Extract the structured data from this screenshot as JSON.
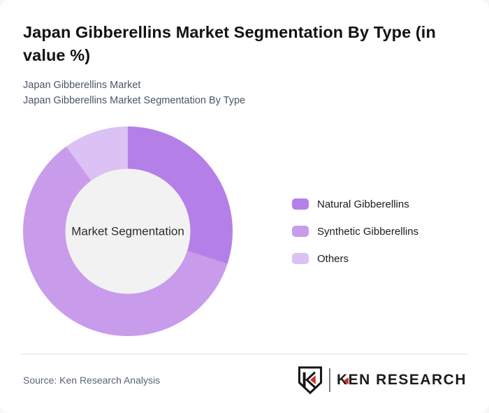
{
  "header": {
    "title": "Japan Gibberellins Market Segmentation By Type (in value %)",
    "subtitle_line1": "Japan Gibberellins Market",
    "subtitle_line2": "Japan Gibberellins Market Segmentation By Type"
  },
  "chart_data": {
    "type": "pie",
    "variant": "donut",
    "title": "Japan Gibberellins Market Segmentation By Type (in value %)",
    "center_label": "Market Segmentation",
    "categories": [
      "Natural Gibberellins",
      "Synthetic Gibberellins",
      "Others"
    ],
    "values": [
      30,
      60,
      10
    ],
    "unit": "value %",
    "colors": [
      "#b480e8",
      "#c89ceb",
      "#dcc1f4"
    ],
    "start_angle_deg": 0,
    "direction": "clockwise",
    "legend_position": "right",
    "inner_hole_color": "#f2f2f2"
  },
  "footer": {
    "source": "Source: Ken Research Analysis",
    "logo_wordmark": "KEN RESEARCH",
    "logo_accent_color": "#cc2f2f"
  }
}
